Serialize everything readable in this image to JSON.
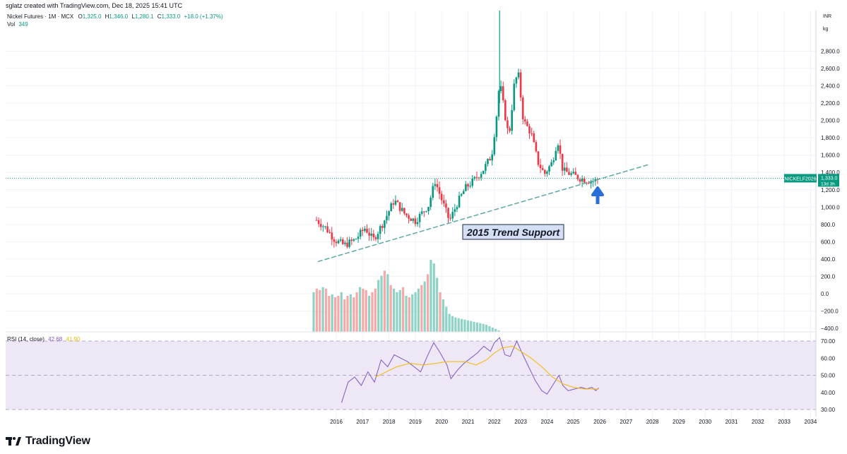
{
  "header": {
    "author_line": "sglatz created with TradingView.com, Dec 18, 2025 15:41 UTC",
    "symbol_line": "Nickel Futures · 1M · MCX",
    "ohlc": {
      "o_label": "O",
      "o": "1,325.0",
      "h_label": "H",
      "h": "1,346.0",
      "l_label": "L",
      "l": "1,280.1",
      "c_label": "C",
      "c": "1,333.0",
      "chg": "+18.0 (+1.37%)"
    },
    "vol_label": "Vol",
    "vol_value": "349"
  },
  "price_axis": {
    "currency": "INR",
    "unit": "kg",
    "symbol_tag": "NICKELF2026",
    "last_price": "1,333.0",
    "countdown": "13d 3h"
  },
  "rsi_legend": {
    "label": "RSI (14, close)",
    "rsi_value": "42.68",
    "ma_value": "41.90"
  },
  "annotation": {
    "text": "2015 Trend Support"
  },
  "brand": {
    "name": "TradingView"
  },
  "colors": {
    "up": "#089981",
    "down": "#f23645",
    "vol_up": "#8fd3c7",
    "vol_down": "#f7a9a7",
    "trend": "#5ea8a4",
    "rsi_line": "#7e57c2",
    "rsi_ma": "#f5b700",
    "rsi_band": "#ede7f6",
    "arrow": "#2a6fd8",
    "annotation_bg": "#d4def5"
  },
  "chart_data": [
    {
      "type": "candlestick",
      "title": "Nickel Futures · 1M · MCX",
      "x_unit": "year",
      "x_ticks": [
        "2016",
        "2017",
        "2018",
        "2019",
        "2020",
        "2021",
        "2022",
        "2023",
        "2024",
        "2025",
        "2026",
        "2027",
        "2028",
        "2029",
        "2030",
        "2031",
        "2032",
        "2033",
        "2034"
      ],
      "y_ticks": [
        "2,800.0",
        "2,600.0",
        "2,400.0",
        "2,200.0",
        "2,000.0",
        "1,800.0",
        "1,600.0",
        "1,400.0",
        "1,200.0",
        "1,000.0",
        "800.0",
        "600.0",
        "400.0",
        "200.0",
        "0.0",
        "−200.0",
        "−400.0"
      ],
      "ylim": [
        -400,
        2800
      ],
      "series_close": [
        [
          2015.25,
          850
        ],
        [
          2015.6,
          760
        ],
        [
          2015.95,
          620
        ],
        [
          2016.3,
          560
        ],
        [
          2016.7,
          620
        ],
        [
          2017.1,
          760
        ],
        [
          2017.4,
          620
        ],
        [
          2017.8,
          830
        ],
        [
          2018.2,
          1080
        ],
        [
          2018.6,
          920
        ],
        [
          2019.0,
          840
        ],
        [
          2019.5,
          1020
        ],
        [
          2019.75,
          1300
        ],
        [
          2020.1,
          1000
        ],
        [
          2020.3,
          840
        ],
        [
          2020.6,
          1050
        ],
        [
          2020.9,
          1220
        ],
        [
          2021.2,
          1300
        ],
        [
          2021.6,
          1440
        ],
        [
          2021.9,
          1600
        ],
        [
          2022.1,
          2100
        ],
        [
          2022.2,
          2460
        ],
        [
          2022.35,
          2160
        ],
        [
          2022.55,
          1800
        ],
        [
          2022.75,
          2400
        ],
        [
          2022.9,
          2560
        ],
        [
          2023.1,
          2000
        ],
        [
          2023.4,
          1850
        ],
        [
          2023.65,
          1520
        ],
        [
          2023.9,
          1380
        ],
        [
          2024.2,
          1520
        ],
        [
          2024.4,
          1780
        ],
        [
          2024.6,
          1420
        ],
        [
          2024.9,
          1380
        ],
        [
          2025.2,
          1340
        ],
        [
          2025.5,
          1310
        ],
        [
          2025.8,
          1300
        ],
        [
          2025.96,
          1333
        ]
      ],
      "high_marks": [
        [
          2022.2,
          2800
        ]
      ],
      "trendline": {
        "label": "2015 Trend Support",
        "from": [
          2015.3,
          370
        ],
        "to": [
          2027.85,
          1490
        ]
      },
      "volume": {
        "note": "overlay histogram, relative heights",
        "values": [
          0.55,
          0.6,
          0.58,
          0.62,
          0.6,
          0.5,
          0.52,
          0.48,
          0.5,
          0.55,
          0.45,
          0.5,
          0.52,
          0.48,
          0.55,
          0.62,
          0.6,
          0.58,
          0.5,
          0.55,
          0.6,
          0.72,
          0.78,
          0.85,
          0.8,
          0.65,
          0.6,
          0.55,
          0.58,
          0.62,
          0.5,
          0.48,
          0.52,
          0.55,
          0.6,
          0.65,
          0.7,
          0.8,
          1.0,
          0.95,
          0.75,
          0.55,
          0.45,
          0.35,
          0.25,
          0.22,
          0.2,
          0.19,
          0.18,
          0.17,
          0.16,
          0.15,
          0.14,
          0.13,
          0.12,
          0.11,
          0.1,
          0.08,
          0.06,
          0.04,
          0.02
        ]
      }
    },
    {
      "type": "line",
      "title": "RSI (14, close)",
      "ylim": [
        30,
        70
      ],
      "y_ticks": [
        "70.00",
        "60.00",
        "50.00",
        "40.00",
        "30.00"
      ],
      "bands": [
        70,
        50,
        30
      ],
      "series": [
        {
          "name": "RSI",
          "points": [
            [
              2016.2,
              34
            ],
            [
              2016.45,
              46
            ],
            [
              2016.7,
              49
            ],
            [
              2016.95,
              44
            ],
            [
              2017.2,
              52
            ],
            [
              2017.45,
              46
            ],
            [
              2017.7,
              59
            ],
            [
              2017.95,
              55
            ],
            [
              2018.2,
              62
            ],
            [
              2018.45,
              60
            ],
            [
              2018.7,
              58
            ],
            [
              2018.95,
              55
            ],
            [
              2019.2,
              52
            ],
            [
              2019.45,
              61
            ],
            [
              2019.7,
              69
            ],
            [
              2019.95,
              63
            ],
            [
              2020.2,
              56
            ],
            [
              2020.35,
              48
            ],
            [
              2020.6,
              53
            ],
            [
              2020.85,
              57
            ],
            [
              2021.1,
              60
            ],
            [
              2021.35,
              63
            ],
            [
              2021.6,
              67
            ],
            [
              2021.85,
              64
            ],
            [
              2022.0,
              69
            ],
            [
              2022.2,
              72
            ],
            [
              2022.4,
              62
            ],
            [
              2022.6,
              61
            ],
            [
              2022.85,
              70
            ],
            [
              2023.05,
              63
            ],
            [
              2023.3,
              55
            ],
            [
              2023.55,
              47
            ],
            [
              2023.8,
              41
            ],
            [
              2024.0,
              39
            ],
            [
              2024.25,
              45
            ],
            [
              2024.45,
              50
            ],
            [
              2024.6,
              44
            ],
            [
              2024.8,
              41
            ],
            [
              2025.05,
              42
            ],
            [
              2025.3,
              43
            ],
            [
              2025.5,
              42
            ],
            [
              2025.7,
              43
            ],
            [
              2025.85,
              41
            ],
            [
              2025.96,
              42.68
            ]
          ]
        },
        {
          "name": "RSI MA",
          "points": [
            [
              2017.5,
              49
            ],
            [
              2017.9,
              52
            ],
            [
              2018.3,
              55
            ],
            [
              2018.8,
              57
            ],
            [
              2019.3,
              56
            ],
            [
              2019.8,
              57
            ],
            [
              2020.2,
              58
            ],
            [
              2020.6,
              58
            ],
            [
              2020.9,
              58
            ],
            [
              2021.3,
              56
            ],
            [
              2021.7,
              59
            ],
            [
              2022.0,
              63
            ],
            [
              2022.3,
              66
            ],
            [
              2022.7,
              67
            ],
            [
              2023.0,
              64
            ],
            [
              2023.4,
              60
            ],
            [
              2023.8,
              55
            ],
            [
              2024.2,
              49
            ],
            [
              2024.6,
              45
            ],
            [
              2025.0,
              43
            ],
            [
              2025.4,
              42
            ],
            [
              2025.8,
              42
            ],
            [
              2025.96,
              41.9
            ]
          ]
        }
      ]
    }
  ]
}
